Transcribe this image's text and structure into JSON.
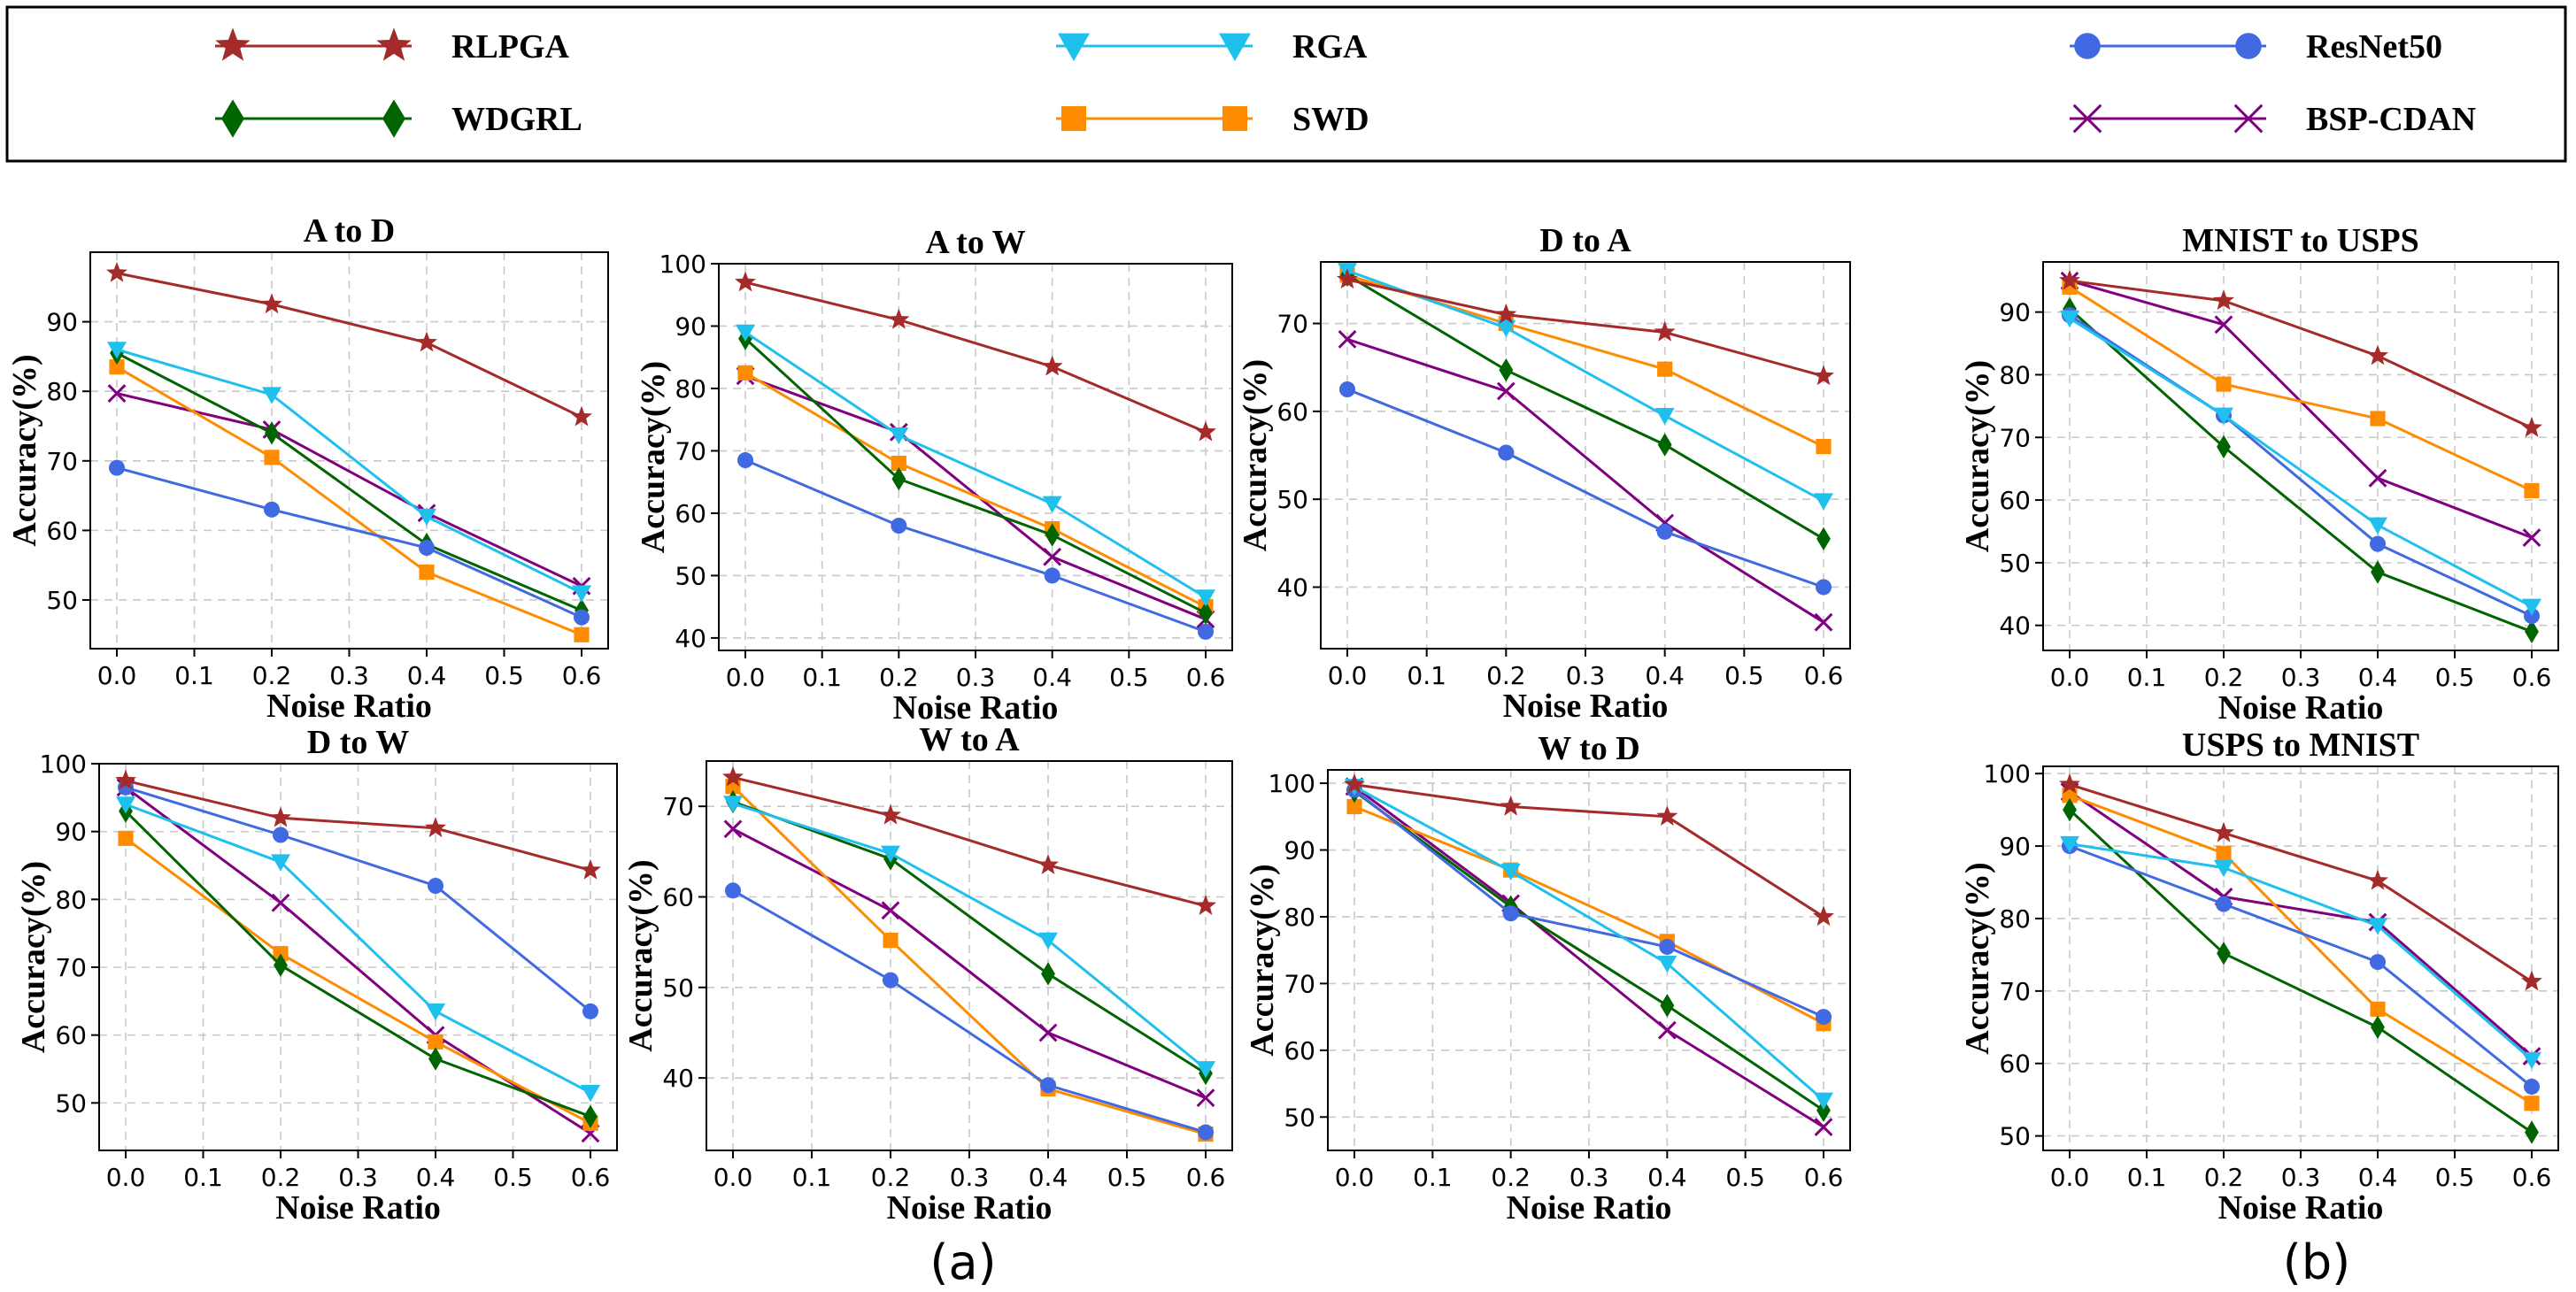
{
  "legend": {
    "entries": [
      {
        "label": "RLPGA",
        "color": "#a52a2a",
        "marker": "star-icon"
      },
      {
        "label": "RGA",
        "color": "#1fbfee",
        "marker": "triangle-down-icon"
      },
      {
        "label": "ResNet50",
        "color": "#4169e1",
        "marker": "circle-icon"
      },
      {
        "label": "WDGRL",
        "color": "#006400",
        "marker": "diamond-icon"
      },
      {
        "label": "SWD",
        "color": "#ff8c00",
        "marker": "square-icon"
      },
      {
        "label": "BSP-CDAN",
        "color": "#800080",
        "marker": "x-icon"
      }
    ]
  },
  "group_labels": {
    "a": "(a)",
    "b": "(b)"
  },
  "chart_data": [
    {
      "type": "line",
      "title": "A to D",
      "xlabel": "Noise Ratio",
      "ylabel": "Accuracy(%)",
      "x": [
        0.0,
        0.2,
        0.4,
        0.6
      ],
      "xticks": [
        "0.0",
        "0.1",
        "0.2",
        "0.3",
        "0.4",
        "0.5",
        "0.6"
      ],
      "ylim": [
        43,
        100
      ],
      "yticks": [
        50,
        60,
        70,
        80,
        90
      ],
      "grid": true,
      "series": [
        {
          "name": "RLPGA",
          "values": [
            97,
            92.5,
            87,
            76.3
          ]
        },
        {
          "name": "RGA",
          "values": [
            86,
            79.5,
            62,
            51
          ]
        },
        {
          "name": "ResNet50",
          "values": [
            69,
            63,
            57.5,
            47.5
          ]
        },
        {
          "name": "WDGRL",
          "values": [
            85.5,
            74,
            58,
            48.5
          ]
        },
        {
          "name": "SWD",
          "values": [
            83.5,
            70.5,
            54,
            45
          ]
        },
        {
          "name": "BSP-CDAN",
          "values": [
            79.7,
            74.5,
            62.5,
            52
          ]
        }
      ]
    },
    {
      "type": "line",
      "title": "A to W",
      "xlabel": "Noise Ratio",
      "ylabel": "Accuracy(%)",
      "x": [
        0.0,
        0.2,
        0.4,
        0.6
      ],
      "xticks": [
        "0.0",
        "0.1",
        "0.2",
        "0.3",
        "0.4",
        "0.5",
        "0.6"
      ],
      "ylim": [
        38,
        100
      ],
      "yticks": [
        40,
        50,
        60,
        70,
        80,
        90,
        100
      ],
      "grid": true,
      "series": [
        {
          "name": "RLPGA",
          "values": [
            97,
            91,
            83.5,
            73
          ]
        },
        {
          "name": "RGA",
          "values": [
            89,
            72.5,
            61.5,
            46.5
          ]
        },
        {
          "name": "ResNet50",
          "values": [
            68.5,
            58,
            50,
            41
          ]
        },
        {
          "name": "WDGRL",
          "values": [
            88,
            65.5,
            56.5,
            44
          ]
        },
        {
          "name": "SWD",
          "values": [
            82.5,
            68,
            57.5,
            45
          ]
        },
        {
          "name": "BSP-CDAN",
          "values": [
            82,
            73,
            53,
            43
          ]
        }
      ]
    },
    {
      "type": "line",
      "title": "D to A",
      "xlabel": "Noise Ratio",
      "ylabel": "Accuracy(%)",
      "x": [
        0.0,
        0.2,
        0.4,
        0.6
      ],
      "xticks": [
        "0.0",
        "0.1",
        "0.2",
        "0.3",
        "0.4",
        "0.5",
        "0.6"
      ],
      "ylim": [
        33,
        77
      ],
      "yticks": [
        40,
        50,
        60,
        70
      ],
      "grid": true,
      "series": [
        {
          "name": "RLPGA",
          "values": [
            75,
            71,
            69,
            64
          ]
        },
        {
          "name": "RGA",
          "values": [
            76,
            69.5,
            59.5,
            49.8
          ]
        },
        {
          "name": "ResNet50",
          "values": [
            62.5,
            55.3,
            46.3,
            40
          ]
        },
        {
          "name": "WDGRL",
          "values": [
            75.5,
            64.7,
            56.2,
            45.5
          ]
        },
        {
          "name": "SWD",
          "values": [
            75.5,
            70,
            64.8,
            56
          ]
        },
        {
          "name": "BSP-CDAN",
          "values": [
            68.2,
            62.3,
            47.3,
            36
          ]
        }
      ]
    },
    {
      "type": "line",
      "title": "MNIST to USPS",
      "xlabel": "Noise Ratio",
      "ylabel": "Accuracy(%)",
      "x": [
        0.0,
        0.2,
        0.4,
        0.6
      ],
      "xticks": [
        "0.0",
        "0.1",
        "0.2",
        "0.3",
        "0.4",
        "0.5",
        "0.6"
      ],
      "ylim": [
        36,
        98
      ],
      "yticks": [
        40,
        50,
        60,
        70,
        80,
        90
      ],
      "grid": true,
      "series": [
        {
          "name": "RLPGA",
          "values": [
            95,
            91.8,
            83,
            71.5
          ]
        },
        {
          "name": "RGA",
          "values": [
            89,
            73.5,
            56,
            43
          ]
        },
        {
          "name": "ResNet50",
          "values": [
            89.5,
            73.5,
            53,
            41.5
          ]
        },
        {
          "name": "WDGRL",
          "values": [
            90.5,
            68.5,
            48.5,
            39
          ]
        },
        {
          "name": "SWD",
          "values": [
            94,
            78.5,
            73,
            61.5
          ]
        },
        {
          "name": "BSP-CDAN",
          "values": [
            95,
            88,
            63.5,
            54
          ]
        }
      ]
    },
    {
      "type": "line",
      "title": "D to W",
      "xlabel": "Noise Ratio",
      "ylabel": "Accuracy(%)",
      "x": [
        0.0,
        0.2,
        0.4,
        0.6
      ],
      "xticks": [
        "0.0",
        "0.1",
        "0.2",
        "0.3",
        "0.4",
        "0.5",
        "0.6"
      ],
      "ylim": [
        43,
        100
      ],
      "yticks": [
        50,
        60,
        70,
        80,
        90,
        100
      ],
      "grid": true,
      "series": [
        {
          "name": "RLPGA",
          "values": [
            97.5,
            92,
            90.5,
            84.3
          ]
        },
        {
          "name": "RGA",
          "values": [
            94,
            85.5,
            63.5,
            51.5
          ]
        },
        {
          "name": "ResNet50",
          "values": [
            96.5,
            89.5,
            82,
            63.5
          ]
        },
        {
          "name": "WDGRL",
          "values": [
            93,
            70.3,
            56.5,
            48
          ]
        },
        {
          "name": "SWD",
          "values": [
            89,
            72,
            59,
            47
          ]
        },
        {
          "name": "BSP-CDAN",
          "values": [
            96.5,
            79.5,
            60,
            45.5
          ]
        }
      ]
    },
    {
      "type": "line",
      "title": "W to A",
      "xlabel": "Noise Ratio",
      "ylabel": "Accuracy(%)",
      "x": [
        0.0,
        0.2,
        0.4,
        0.6
      ],
      "xticks": [
        "0.0",
        "0.1",
        "0.2",
        "0.3",
        "0.4",
        "0.5",
        "0.6"
      ],
      "ylim": [
        32,
        75
      ],
      "yticks": [
        40,
        50,
        60,
        70
      ],
      "grid": true,
      "series": [
        {
          "name": "RLPGA",
          "values": [
            73.2,
            69,
            63.5,
            59
          ]
        },
        {
          "name": "RGA",
          "values": [
            70.3,
            64.8,
            55.2,
            41
          ]
        },
        {
          "name": "ResNet50",
          "values": [
            60.7,
            50.8,
            39.2,
            34
          ]
        },
        {
          "name": "WDGRL",
          "values": [
            70.5,
            64.2,
            51.5,
            40.5
          ]
        },
        {
          "name": "SWD",
          "values": [
            72.2,
            55.2,
            38.8,
            33.8
          ]
        },
        {
          "name": "BSP-CDAN",
          "values": [
            67.5,
            58.5,
            45,
            37.8
          ]
        }
      ]
    },
    {
      "type": "line",
      "title": "W to D",
      "xlabel": "Noise Ratio",
      "ylabel": "Accuracy(%)",
      "x": [
        0.0,
        0.2,
        0.4,
        0.6
      ],
      "xticks": [
        "0.0",
        "0.1",
        "0.2",
        "0.3",
        "0.4",
        "0.5",
        "0.6"
      ],
      "ylim": [
        45,
        102
      ],
      "yticks": [
        50,
        60,
        70,
        80,
        90,
        100
      ],
      "grid": true,
      "series": [
        {
          "name": "RLPGA",
          "values": [
            99.8,
            96.5,
            95,
            80
          ]
        },
        {
          "name": "RGA",
          "values": [
            99.5,
            86.8,
            73,
            52.5
          ]
        },
        {
          "name": "ResNet50",
          "values": [
            99,
            80.5,
            75.5,
            65
          ]
        },
        {
          "name": "WDGRL",
          "values": [
            98.8,
            81.5,
            66.7,
            51
          ]
        },
        {
          "name": "SWD",
          "values": [
            96.5,
            87,
            76.3,
            64
          ]
        },
        {
          "name": "BSP-CDAN",
          "values": [
            99.5,
            82,
            63,
            48.5
          ]
        }
      ]
    },
    {
      "type": "line",
      "title": "USPS to MNIST",
      "xlabel": "Noise Ratio",
      "ylabel": "Accuracy(%)",
      "x": [
        0.0,
        0.2,
        0.4,
        0.6
      ],
      "xticks": [
        "0.0",
        "0.1",
        "0.2",
        "0.3",
        "0.4",
        "0.5",
        "0.6"
      ],
      "ylim": [
        48,
        101
      ],
      "yticks": [
        50,
        60,
        70,
        80,
        90,
        100
      ],
      "grid": true,
      "series": [
        {
          "name": "RLPGA",
          "values": [
            98.5,
            91.8,
            85.2,
            71.3
          ]
        },
        {
          "name": "RGA",
          "values": [
            90.3,
            87,
            79,
            60.5
          ]
        },
        {
          "name": "ResNet50",
          "values": [
            90,
            82,
            74,
            56.8
          ]
        },
        {
          "name": "WDGRL",
          "values": [
            95,
            75.2,
            65,
            50.5
          ]
        },
        {
          "name": "SWD",
          "values": [
            97,
            89,
            67.5,
            54.5
          ]
        },
        {
          "name": "BSP-CDAN",
          "values": [
            97.5,
            83,
            79.5,
            61
          ]
        }
      ]
    }
  ]
}
